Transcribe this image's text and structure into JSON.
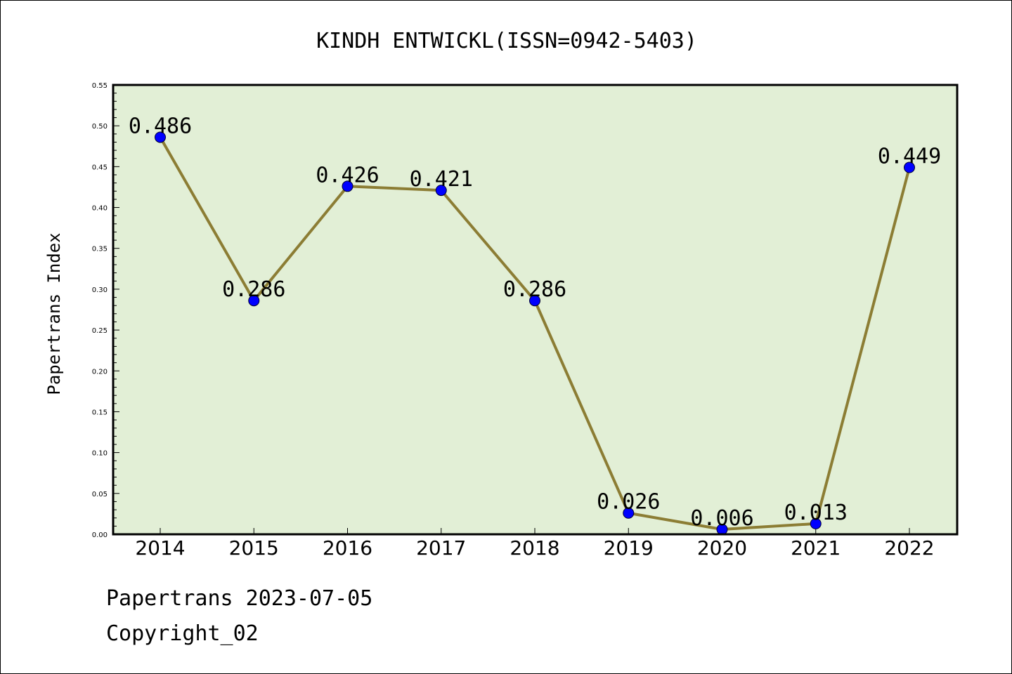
{
  "chart_data": {
    "type": "line",
    "title": "KINDH ENTWICKL(ISSN=0942-5403)",
    "xlabel": "",
    "ylabel": "Papertrans Index",
    "categories": [
      "2014",
      "2015",
      "2016",
      "2017",
      "2018",
      "2019",
      "2020",
      "2021",
      "2022"
    ],
    "series": [
      {
        "values": [
          0.486,
          0.286,
          0.426,
          0.421,
          0.286,
          0.026,
          0.006,
          0.013,
          0.449
        ],
        "labels": [
          "0.486",
          "0.286",
          "0.426",
          "0.421",
          "0.286",
          "0.026",
          "0.006",
          "0.013",
          "0.449"
        ]
      }
    ],
    "ylim": [
      0,
      0.55
    ],
    "yticks": [
      "0.00",
      "0.05",
      "0.10",
      "0.15",
      "0.20",
      "0.25",
      "0.30",
      "0.35",
      "0.40",
      "0.45",
      "0.50",
      "0.55"
    ],
    "grid": false,
    "legend": "none",
    "colors": {
      "plot_background": "#e2efd6",
      "line": "#8c7d34",
      "marker": "#0000ff",
      "axes": "#000000"
    }
  },
  "footer": {
    "line1": "Papertrans 2023-07-05",
    "line2": "Copyright_02"
  }
}
